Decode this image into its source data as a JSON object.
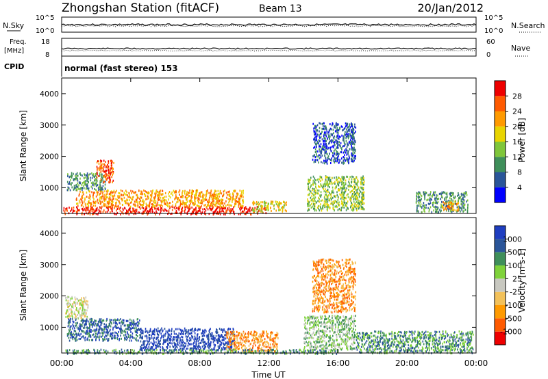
{
  "header": {
    "station": "Zhongshan Station (fitACF)",
    "beam": "Beam 13",
    "date": "20/Jan/2012"
  },
  "panels": {
    "nsky": {
      "label": "N.Sky",
      "tick_top": "10^5",
      "tick_bottom": "10^0"
    },
    "nsearch": {
      "label": "N.Search",
      "tick_top": "10^5",
      "tick_bottom": "10^0"
    },
    "freq": {
      "label_line1": "Freq.",
      "label_line2": "[MHz]",
      "tick_top": "18",
      "tick_bottom": "8"
    },
    "nave": {
      "label": "Nave",
      "tick_top": "60",
      "tick_bottom": "0"
    },
    "cpid": {
      "label": "CPID",
      "value": "normal (fast stereo) 153"
    }
  },
  "colors": {
    "power": [
      "#0000ff",
      "#2a5599",
      "#3f8f5a",
      "#7fc63a",
      "#e8d400",
      "#ff9a00",
      "#ff5a00",
      "#ee0000"
    ],
    "velocity": [
      "#ee0000",
      "#ff5a00",
      "#ff9a00",
      "#f2c15a",
      "#c8c8c0",
      "#7fd23a",
      "#3f8f5a",
      "#2a5599",
      "#1f3ec0"
    ]
  },
  "chart_data": [
    {
      "type": "heatmap",
      "name": "power",
      "xlabel": "",
      "ylabel": "Slant Range [km]",
      "x_range_hours": [
        0,
        24
      ],
      "ylim": [
        180,
        4500
      ],
      "y_ticks": [
        "1000",
        "2000",
        "3000",
        "4000"
      ],
      "colorbar_label": "Power [dB]",
      "colorbar_ticks": [
        "4",
        "8",
        "12",
        "16",
        "20",
        "24",
        "28"
      ],
      "regions": [
        {
          "t0": 0.1,
          "t1": 11.8,
          "r0": 180,
          "r1": 420,
          "level": 7
        },
        {
          "t0": 0.8,
          "t1": 10.5,
          "r0": 420,
          "r1": 950,
          "level": 5
        },
        {
          "t0": 0.3,
          "t1": 2.5,
          "r0": 950,
          "r1": 1500,
          "level": 2
        },
        {
          "t0": 2.0,
          "t1": 3.0,
          "r0": 1200,
          "r1": 1900,
          "level": 6
        },
        {
          "t0": 11.0,
          "t1": 13.0,
          "r0": 250,
          "r1": 600,
          "level": 4
        },
        {
          "t0": 14.5,
          "t1": 17.0,
          "r0": 1800,
          "r1": 3100,
          "level": 1
        },
        {
          "t0": 14.2,
          "t1": 17.5,
          "r0": 300,
          "r1": 1400,
          "level": 3
        },
        {
          "t0": 20.5,
          "t1": 23.5,
          "r0": 250,
          "r1": 900,
          "level": 2
        },
        {
          "t0": 22.0,
          "t1": 23.0,
          "r0": 300,
          "r1": 600,
          "level": 5
        }
      ]
    },
    {
      "type": "heatmap",
      "name": "velocity",
      "xlabel": "Time UT",
      "ylabel": "Slant Range [km]",
      "x_range_hours": [
        0,
        24
      ],
      "ylim": [
        180,
        4500
      ],
      "y_ticks": [
        "1000",
        "2000",
        "3000",
        "4000"
      ],
      "x_ticks": [
        "00:00",
        "04:00",
        "08:00",
        "12:00",
        "16:00",
        "20:00",
        "00:00"
      ],
      "colorbar_label": "Velocity [m s-1]",
      "colorbar_ticks": [
        "-1000",
        "-500",
        "-100",
        "-25",
        "25",
        "100",
        "500",
        "1000"
      ],
      "regions": [
        {
          "t0": 0.3,
          "t1": 4.5,
          "r0": 600,
          "r1": 1300,
          "level": 7
        },
        {
          "t0": 4.5,
          "t1": 10.0,
          "r0": 300,
          "r1": 1000,
          "level": 8
        },
        {
          "t0": 0.2,
          "t1": 1.5,
          "r0": 1300,
          "r1": 2000,
          "level": 4
        },
        {
          "t0": 9.5,
          "t1": 12.5,
          "r0": 250,
          "r1": 900,
          "level": 2
        },
        {
          "t0": 14.5,
          "t1": 17.0,
          "r0": 1500,
          "r1": 3200,
          "level": 2
        },
        {
          "t0": 14.0,
          "t1": 17.0,
          "r0": 300,
          "r1": 1400,
          "level": 5
        },
        {
          "t0": 17.0,
          "t1": 23.8,
          "r0": 200,
          "r1": 900,
          "level": 6
        },
        {
          "t0": 0.1,
          "t1": 16.0,
          "r0": 180,
          "r1": 320,
          "level": 6
        }
      ]
    }
  ]
}
